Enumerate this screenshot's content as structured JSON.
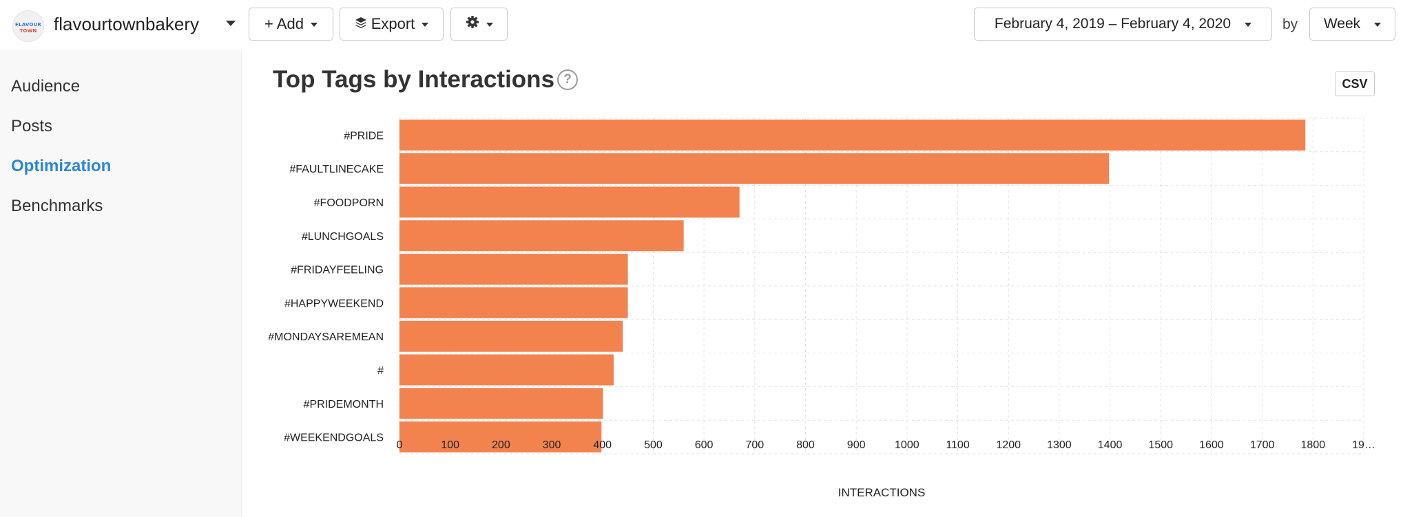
{
  "header": {
    "logo_line1": "FLAVOUR",
    "logo_line2": "TOWN",
    "account_name": "flavourtownbakery",
    "add_label": "+ Add",
    "export_label": "Export",
    "date_range": "February 4, 2019 – February 4, 2020",
    "by_label": "by",
    "interval": "Week"
  },
  "sidebar": {
    "items": [
      {
        "label": "Audience",
        "active": false
      },
      {
        "label": "Posts",
        "active": false
      },
      {
        "label": "Optimization",
        "active": true
      },
      {
        "label": "Benchmarks",
        "active": false
      }
    ]
  },
  "panel": {
    "title": "Top Tags by Interactions",
    "help": "?",
    "csv_label": "CSV"
  },
  "colors": {
    "bar": "#f2834f",
    "accent": "#2b86d9",
    "grid": "#e2e2e2"
  },
  "chart_data": {
    "type": "bar",
    "orientation": "horizontal",
    "categories": [
      "#PRIDE",
      "#FAULTLINECAKE",
      "#FOODPORN",
      "#LUNCHGOALS",
      "#FRIDAYFEELING",
      "#HAPPYWEEKEND",
      "#MONDAYSAREMEAN",
      "#",
      "#PRIDEMONTH",
      "#WEEKENDGOALS"
    ],
    "values": [
      1785,
      1398,
      670,
      560,
      450,
      450,
      440,
      422,
      401,
      398
    ],
    "xlabel": "INTERACTIONS",
    "xlim": [
      0,
      1900
    ],
    "xticks": [
      "0",
      "100",
      "200",
      "300",
      "400",
      "500",
      "600",
      "700",
      "800",
      "900",
      "1000",
      "1100",
      "1200",
      "1300",
      "1400",
      "1500",
      "1600",
      "1700",
      "1800",
      "19…"
    ],
    "grid": true
  }
}
